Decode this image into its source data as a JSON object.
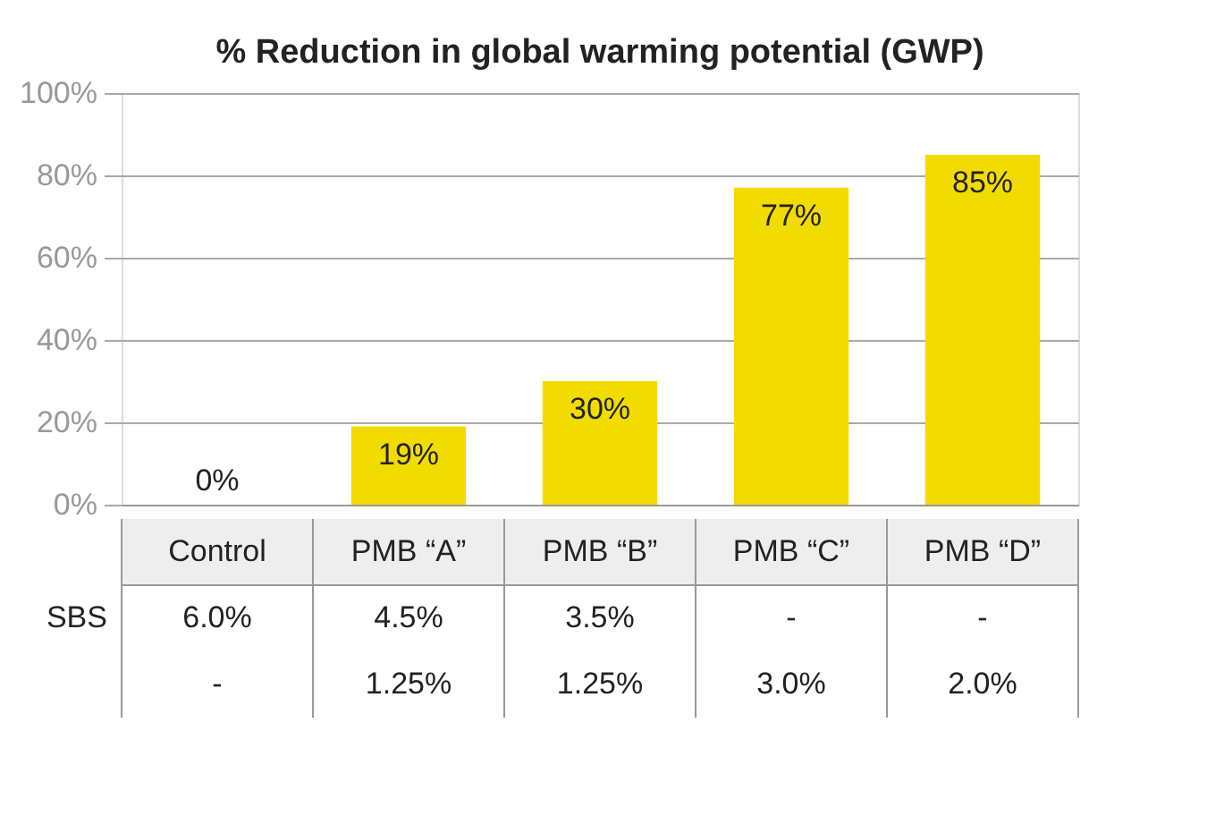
{
  "chart_data": {
    "type": "bar",
    "title": "% Reduction in global warming potential (GWP)",
    "categories": [
      "Control",
      "PMB “A”",
      "PMB “B”",
      "PMB “C”",
      "PMB “D”"
    ],
    "values": [
      0,
      19,
      30,
      77,
      85
    ],
    "color": "#f2dc00",
    "value_labels": [
      "0%",
      "19%",
      "30%",
      "77%",
      "85%"
    ],
    "ylim": [
      0,
      100
    ],
    "yticks": [
      {
        "value": 0,
        "label": "0%"
      },
      {
        "value": 20,
        "label": "20%"
      },
      {
        "value": 40,
        "label": "40%"
      },
      {
        "value": 60,
        "label": "60%"
      },
      {
        "value": 80,
        "label": "80%"
      },
      {
        "value": 100,
        "label": "100%"
      }
    ],
    "grid": "y",
    "annotations": [
      "SBS",
      "6.0%",
      "4.5%",
      "3.5%",
      "-",
      "-",
      "-",
      "1.25%",
      "1.25%",
      "3.0%",
      "2.0%"
    ]
  }
}
